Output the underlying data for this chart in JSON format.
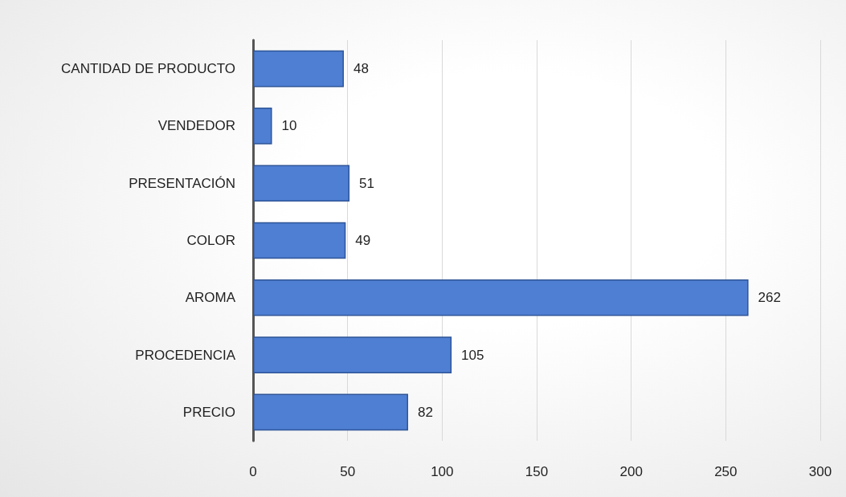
{
  "chart_data": {
    "type": "bar",
    "orientation": "horizontal",
    "categories": [
      "CANTIDAD DE PRODUCTO",
      "VENDEDOR",
      "PRESENTACIÓN",
      "COLOR",
      "AROMA",
      "PROCEDENCIA",
      "PRECIO"
    ],
    "values": [
      48,
      10,
      51,
      49,
      262,
      105,
      82
    ],
    "color": "#4f7fd3",
    "xlim": [
      0,
      300
    ],
    "xticks": [
      0,
      50,
      100,
      150,
      200,
      250,
      300
    ],
    "grid": "x",
    "data_labels": true
  }
}
